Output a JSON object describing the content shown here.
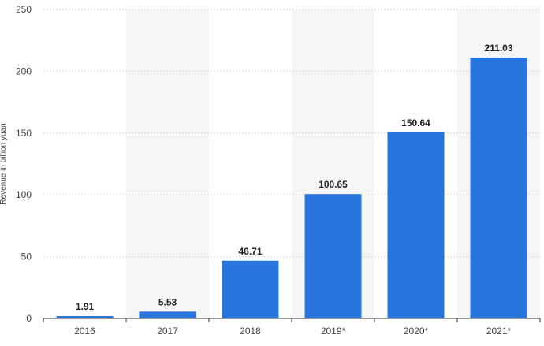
{
  "chart_data": {
    "type": "bar",
    "title": "",
    "xlabel": "",
    "ylabel": "Revenue in billion yuan",
    "categories": [
      "2016",
      "2017",
      "2018",
      "2019*",
      "2020*",
      "2021*"
    ],
    "values": [
      1.91,
      5.53,
      46.71,
      100.65,
      150.64,
      211.03
    ],
    "value_labels": [
      "1.91",
      "5.53",
      "46.71",
      "100.65",
      "150.64",
      "211.03"
    ],
    "ylim": [
      0,
      250
    ],
    "yticks": [
      0,
      50,
      100,
      150,
      200,
      250
    ],
    "ytick_labels": [
      "0",
      "50",
      "100",
      "150",
      "200",
      "250"
    ],
    "grid": true,
    "grid_style": "dashed horizontal",
    "legend": "none",
    "alternating_column_shading": true,
    "colors": {
      "bar": "#2876dd",
      "shading": "#f6f6f6",
      "grid": "#d5d5d5",
      "axis": "#333333",
      "text": "#444444"
    }
  }
}
